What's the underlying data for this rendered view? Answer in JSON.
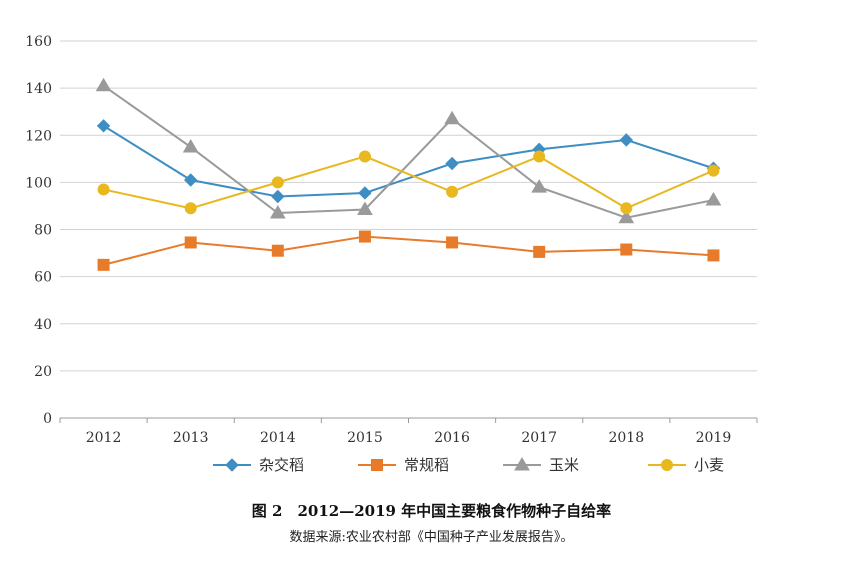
{
  "chart_data": {
    "type": "line",
    "title": "图 2　2012—2019 年中国主要粮食作物种子自给率",
    "source_note": "数据来源:农业农村部《中国种子产业发展报告》。",
    "categories": [
      "2012",
      "2013",
      "2014",
      "2015",
      "2016",
      "2017",
      "2018",
      "2019"
    ],
    "ylim": [
      0,
      160
    ],
    "yticks": [
      0,
      20,
      40,
      60,
      80,
      100,
      120,
      140,
      160
    ],
    "grid": true,
    "legend_position": "bottom",
    "series": [
      {
        "name": "杂交稻",
        "marker": "diamond",
        "color": "#3e8ec4",
        "values": [
          124,
          101,
          94,
          95.5,
          108,
          114,
          118,
          106
        ]
      },
      {
        "name": "常规稻",
        "marker": "square",
        "color": "#e77b2a",
        "values": [
          65,
          74.5,
          71,
          77,
          74.5,
          70.5,
          71.5,
          69
        ]
      },
      {
        "name": "玉米",
        "marker": "triangle",
        "color": "#9a9a9a",
        "values": [
          141,
          115,
          87,
          88.5,
          127,
          98,
          85,
          92.5
        ]
      },
      {
        "name": "小麦",
        "marker": "circle",
        "color": "#e8b81e",
        "values": [
          97,
          89,
          100,
          111,
          96,
          111,
          89,
          105
        ]
      }
    ]
  }
}
